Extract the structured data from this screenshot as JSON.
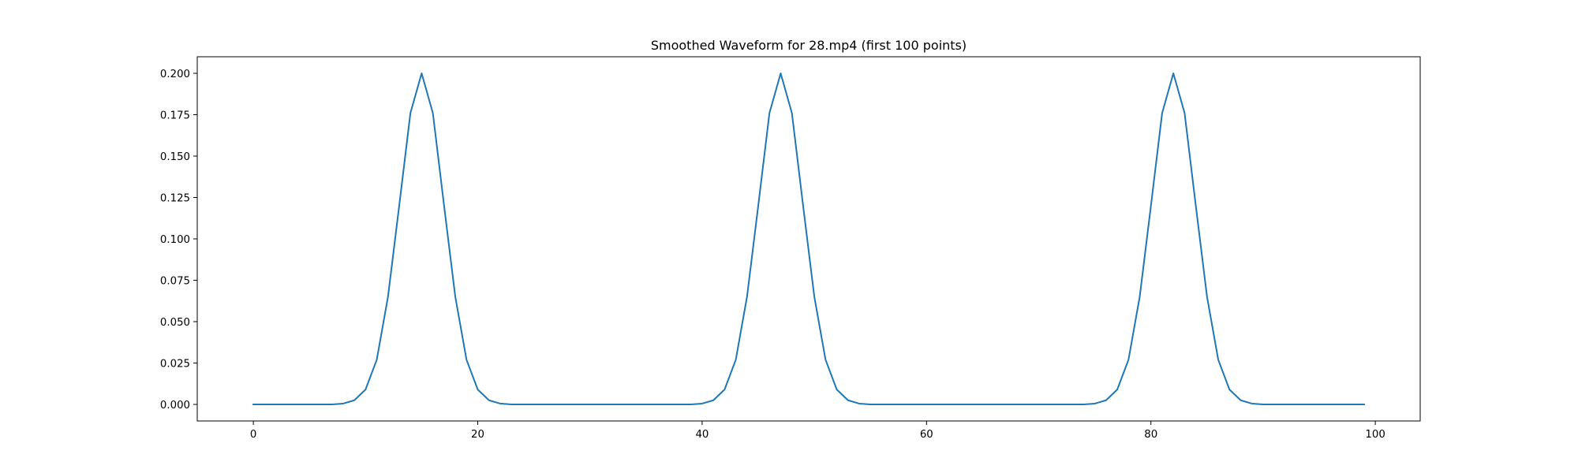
{
  "chart_data": {
    "type": "line",
    "title": "Smoothed Waveform for 28.mp4 (first 100 points)",
    "xlabel": "",
    "ylabel": "",
    "xlim": [
      -5,
      104
    ],
    "ylim": [
      -0.01,
      0.21
    ],
    "x_ticks": [
      0,
      20,
      40,
      60,
      80,
      100
    ],
    "x_tick_labels": [
      "0",
      "20",
      "40",
      "60",
      "80",
      "100"
    ],
    "y_ticks": [
      0.0,
      0.025,
      0.05,
      0.075,
      0.1,
      0.125,
      0.15,
      0.175,
      0.2
    ],
    "y_tick_labels": [
      "0.000",
      "0.025",
      "0.050",
      "0.075",
      "0.100",
      "0.125",
      "0.150",
      "0.175",
      "0.200"
    ],
    "grid": false,
    "legend": "none",
    "series": [
      {
        "color": "#1f77b4",
        "x": [
          0,
          1,
          2,
          3,
          4,
          5,
          6,
          7,
          8,
          9,
          10,
          11,
          12,
          13,
          14,
          15,
          16,
          17,
          18,
          19,
          20,
          21,
          22,
          23,
          24,
          25,
          26,
          27,
          28,
          29,
          30,
          31,
          32,
          33,
          34,
          35,
          36,
          37,
          38,
          39,
          40,
          41,
          42,
          43,
          44,
          45,
          46,
          47,
          48,
          49,
          50,
          51,
          52,
          53,
          54,
          55,
          56,
          57,
          58,
          59,
          60,
          61,
          62,
          63,
          64,
          65,
          66,
          67,
          68,
          69,
          70,
          71,
          72,
          73,
          74,
          75,
          76,
          77,
          78,
          79,
          80,
          81,
          82,
          83,
          84,
          85,
          86,
          87,
          88,
          89,
          90,
          91,
          92,
          93,
          94,
          95,
          96,
          97,
          98,
          99
        ],
        "values": [
          0,
          0,
          0,
          0,
          0,
          0,
          0,
          0,
          0.0005,
          0.0025,
          0.009,
          0.027,
          0.065,
          0.12,
          0.176,
          0.2,
          0.176,
          0.12,
          0.065,
          0.027,
          0.009,
          0.0025,
          0.0005,
          0,
          0,
          0,
          0,
          0,
          0,
          0,
          0,
          0,
          0,
          0,
          0,
          0,
          0,
          0,
          0,
          0,
          0.0005,
          0.0025,
          0.009,
          0.027,
          0.065,
          0.12,
          0.176,
          0.2,
          0.176,
          0.12,
          0.065,
          0.027,
          0.009,
          0.0025,
          0.0005,
          0,
          0,
          0,
          0,
          0,
          0,
          0,
          0,
          0,
          0,
          0,
          0,
          0,
          0,
          0,
          0,
          0,
          0,
          0,
          0,
          0.0005,
          0.0025,
          0.009,
          0.027,
          0.065,
          0.12,
          0.176,
          0.2,
          0.176,
          0.12,
          0.065,
          0.027,
          0.009,
          0.0025,
          0.0005,
          0,
          0,
          0,
          0,
          0,
          0,
          0,
          0,
          0,
          0
        ]
      }
    ]
  }
}
